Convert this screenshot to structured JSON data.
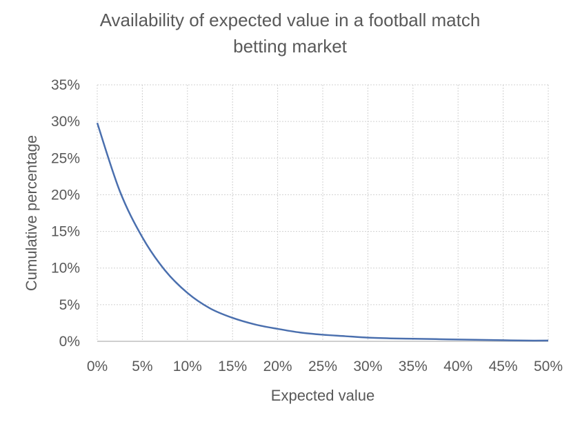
{
  "chart_data": {
    "type": "line",
    "title_lines": [
      "Availability of expected value in a football match",
      "betting market"
    ],
    "xlabel": "Expected value",
    "ylabel": "Cumulative percentage",
    "xlim": [
      0,
      0.5
    ],
    "ylim": [
      0,
      0.35
    ],
    "x_ticks": [
      "0%",
      "5%",
      "10%",
      "15%",
      "20%",
      "25%",
      "30%",
      "35%",
      "40%",
      "45%",
      "50%"
    ],
    "y_ticks": [
      "0%",
      "5%",
      "10%",
      "15%",
      "20%",
      "25%",
      "30%",
      "35%"
    ],
    "grid": true,
    "legend": "none",
    "line_color": "#4a6fae",
    "series": [
      {
        "x": [
          0,
          0.025,
          0.05,
          0.075,
          0.1,
          0.125,
          0.15,
          0.175,
          0.2,
          0.225,
          0.25,
          0.275,
          0.3,
          0.325,
          0.35,
          0.375,
          0.4,
          0.425,
          0.45,
          0.475,
          0.5
        ],
        "y": [
          0.298,
          0.205,
          0.142,
          0.097,
          0.066,
          0.045,
          0.032,
          0.023,
          0.017,
          0.012,
          0.009,
          0.007,
          0.005,
          0.004,
          0.0035,
          0.003,
          0.0025,
          0.002,
          0.0015,
          0.001,
          0.001
        ]
      }
    ]
  }
}
